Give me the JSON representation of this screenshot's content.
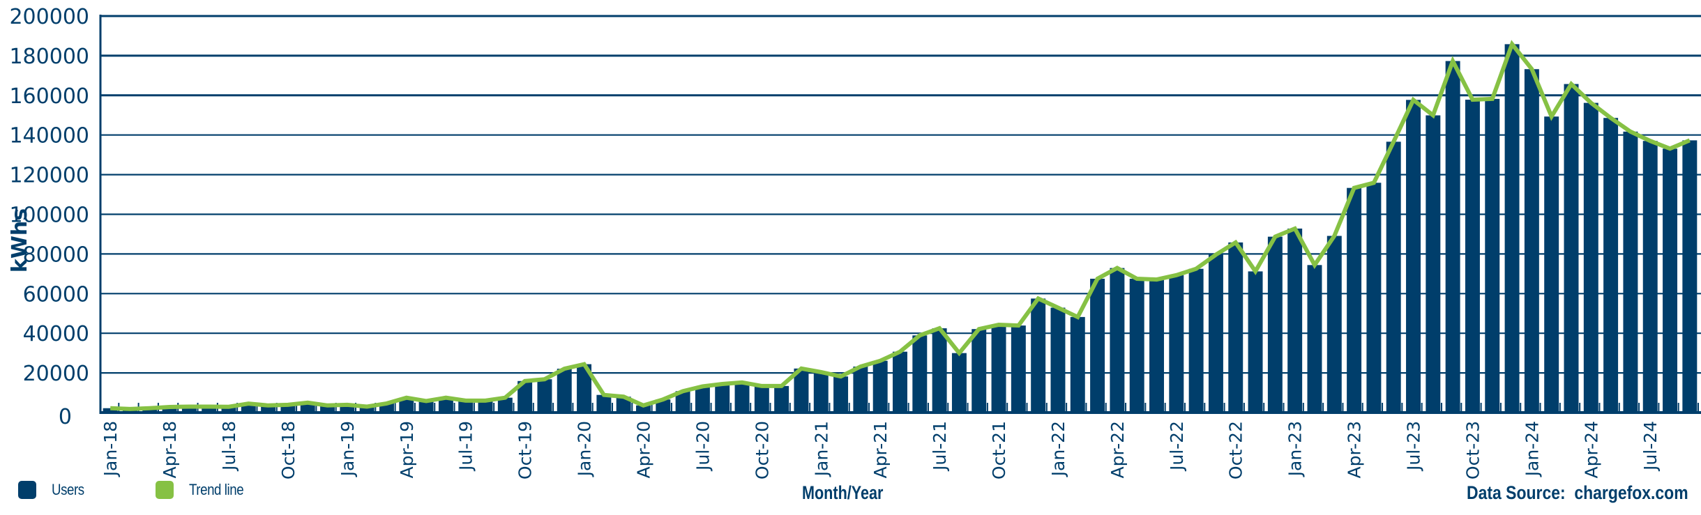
{
  "chart_data": {
    "type": "bar",
    "title": "",
    "xlabel": "Month/Year",
    "ylabel": "kWhs",
    "ylim": [
      0,
      200000
    ],
    "yticks": [
      0,
      20000,
      40000,
      60000,
      80000,
      100000,
      120000,
      140000,
      160000,
      180000,
      200000
    ],
    "grid": true,
    "legend_position": "bottom-left",
    "legend": [
      "Users",
      "Trend line"
    ],
    "source": "Data Source:  chargefox.com",
    "x_tick_labels": [
      "Jan-18",
      "Apr-18",
      "Jul-18",
      "Oct-18",
      "Jan-19",
      "Apr-19",
      "Jul-19",
      "Oct-19",
      "Jan-20",
      "Apr-20",
      "Jul-20",
      "Oct-20",
      "Jan-21",
      "Apr-21",
      "Jul-21",
      "Oct-21",
      "Jan-22",
      "Apr-22",
      "Jul-22",
      "Oct-22",
      "Jan-23",
      "Apr-23",
      "Jul-23",
      "Oct-23",
      "Jan-24",
      "Apr-24",
      "Jul-24"
    ],
    "categories": [
      "Jan-18",
      "Feb-18",
      "Mar-18",
      "Apr-18",
      "May-18",
      "Jun-18",
      "Jul-18",
      "Aug-18",
      "Sep-18",
      "Oct-18",
      "Nov-18",
      "Dec-18",
      "Jan-19",
      "Feb-19",
      "Mar-19",
      "Apr-19",
      "May-19",
      "Jun-19",
      "Jul-19",
      "Aug-19",
      "Sep-19",
      "Oct-19",
      "Nov-19",
      "Dec-19",
      "Jan-20",
      "Feb-20",
      "Mar-20",
      "Apr-20",
      "May-20",
      "Jun-20",
      "Jul-20",
      "Aug-20",
      "Sep-20",
      "Oct-20",
      "Nov-20",
      "Dec-20",
      "Jan-21",
      "Feb-21",
      "Mar-21",
      "Apr-21",
      "May-21",
      "Jun-21",
      "Jul-21",
      "Aug-21",
      "Sep-21",
      "Oct-21",
      "Nov-21",
      "Dec-21",
      "Jan-22",
      "Feb-22",
      "Mar-22",
      "Apr-22",
      "May-22",
      "Jun-22",
      "Jul-22",
      "Aug-22",
      "Sep-22",
      "Oct-22",
      "Nov-22",
      "Dec-22",
      "Jan-23",
      "Feb-23",
      "Mar-23",
      "Apr-23",
      "May-23",
      "Jun-23",
      "Jul-23",
      "Aug-23",
      "Sep-23",
      "Oct-23",
      "Nov-23",
      "Dec-23",
      "Jan-24",
      "Feb-24",
      "Mar-24",
      "Apr-24",
      "May-24",
      "Jun-24",
      "Jul-24",
      "Aug-24",
      "Sep-24"
    ],
    "series": [
      {
        "name": "Users",
        "type": "bar",
        "color": "#003e6b",
        "values": [
          2200,
          1800,
          2200,
          2800,
          3000,
          3000,
          2900,
          4500,
          3600,
          3900,
          5000,
          3600,
          3900,
          3000,
          4600,
          7500,
          5800,
          7500,
          6000,
          6000,
          7500,
          15900,
          16800,
          22100,
          24400,
          8900,
          8000,
          3600,
          6600,
          10800,
          13200,
          14400,
          15200,
          13400,
          13400,
          22200,
          20400,
          18200,
          23200,
          26100,
          30700,
          38900,
          42500,
          30000,
          42100,
          44300,
          43900,
          57500,
          52900,
          48200,
          67500,
          72900,
          67500,
          67100,
          69300,
          72500,
          79600,
          85800,
          71200,
          88700,
          92800,
          74400,
          89100,
          113300,
          115900,
          136600,
          157700,
          149900,
          177300,
          157800,
          158200,
          185800,
          173200,
          149300,
          165700,
          156200,
          148600,
          141700,
          137000,
          133100,
          137300
        ]
      },
      {
        "name": "Trend line",
        "type": "line",
        "color": "#86c144",
        "values": [
          2200,
          1800,
          2200,
          2800,
          3000,
          3000,
          2900,
          4500,
          3600,
          3900,
          5000,
          3600,
          3900,
          3000,
          4600,
          7500,
          5800,
          7500,
          6000,
          6000,
          7500,
          15900,
          16800,
          22100,
          24400,
          8900,
          8000,
          3600,
          6600,
          10800,
          13200,
          14400,
          15200,
          13400,
          13400,
          22200,
          20400,
          18200,
          23200,
          26100,
          30700,
          38900,
          42500,
          30000,
          42100,
          44300,
          43900,
          57500,
          52900,
          48200,
          67500,
          72900,
          67500,
          67100,
          69300,
          72500,
          79600,
          85800,
          71200,
          88700,
          92800,
          74400,
          89100,
          113300,
          115900,
          136600,
          157700,
          149900,
          177300,
          157800,
          158200,
          185800,
          173200,
          149300,
          165700,
          156200,
          148600,
          141700,
          137000,
          133100,
          137300
        ]
      }
    ]
  },
  "legend": {
    "items": [
      {
        "label": "Users",
        "color": "#003e6b"
      },
      {
        "label": "Trend line",
        "color": "#86c144"
      }
    ]
  },
  "axis": {
    "x_title": "Month/Year",
    "y_title": "kWhs"
  },
  "footer": {
    "source": "Data Source:  chargefox.com"
  },
  "colors": {
    "primary": "#003e6b",
    "trend": "#86c144",
    "background": "#ffffff"
  }
}
